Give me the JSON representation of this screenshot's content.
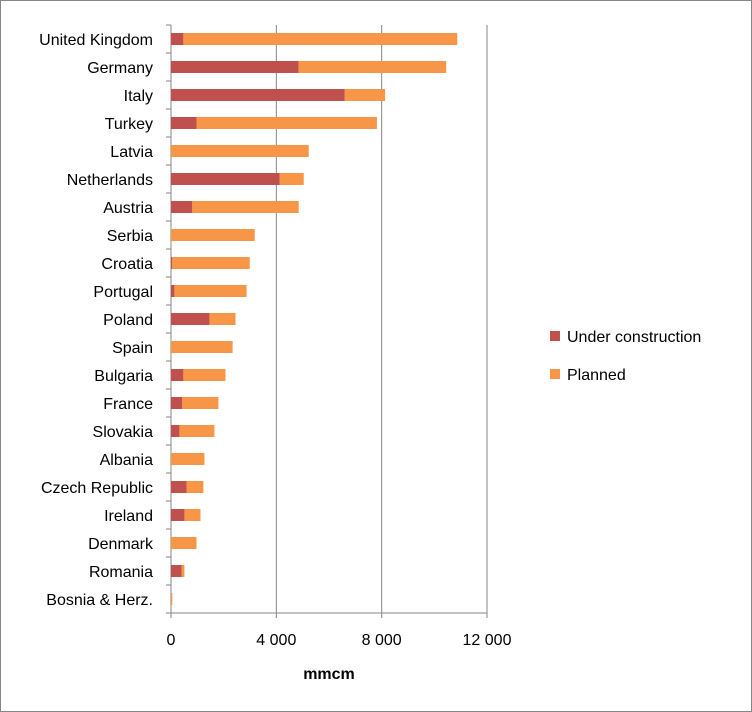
{
  "chart_data": {
    "type": "bar",
    "orientation": "horizontal",
    "stacked": true,
    "title": "",
    "xlabel": "mmcm",
    "ylabel": "",
    "xlim": [
      0,
      12000
    ],
    "xticks": [
      0,
      4000,
      8000,
      12000
    ],
    "xtick_labels": [
      "0",
      "4 000",
      "8 000",
      "12 000"
    ],
    "grid": "vertical",
    "legend_position": "right",
    "categories": [
      "United Kingdom",
      "Germany",
      "Italy",
      "Turkey",
      "Latvia",
      "Netherlands",
      "Austria",
      "Serbia",
      "Croatia",
      "Portugal",
      "Poland",
      "Spain",
      "Bulgaria",
      "France",
      "Slovakia",
      "Albania",
      "Czech Republic",
      "Ireland",
      "Denmark",
      "Romania",
      "Bosnia & Herz."
    ],
    "series": [
      {
        "name": "Under construction",
        "color": "#c0504d",
        "values": [
          470,
          4850,
          6600,
          970,
          0,
          4130,
          810,
          0,
          50,
          130,
          1460,
          0,
          470,
          430,
          320,
          0,
          590,
          510,
          0,
          400,
          0
        ]
      },
      {
        "name": "Planned",
        "color": "#f79646",
        "values": [
          10400,
          5600,
          1530,
          6850,
          5230,
          910,
          4040,
          3180,
          2940,
          2740,
          990,
          2340,
          1600,
          1370,
          1330,
          1270,
          640,
          610,
          970,
          110,
          50
        ]
      }
    ]
  }
}
